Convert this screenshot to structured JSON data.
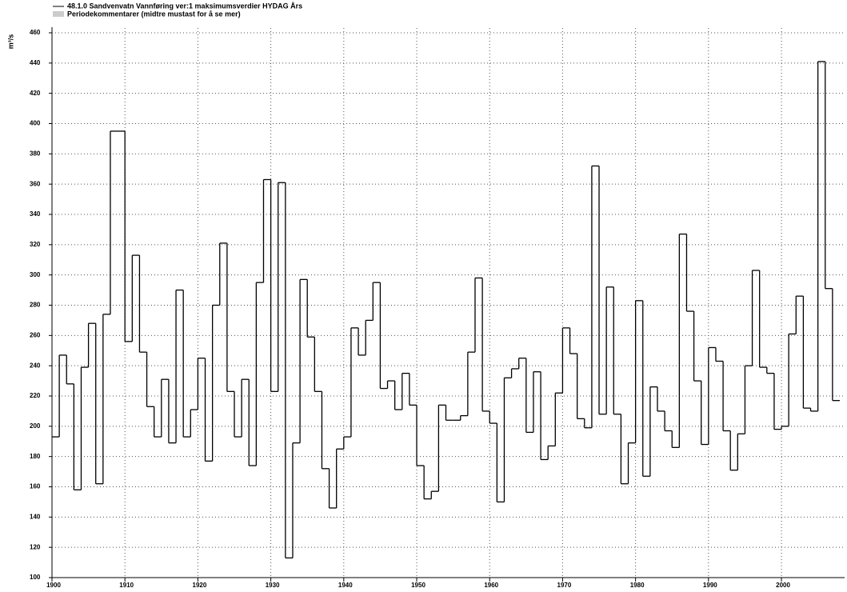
{
  "chart_data": {
    "type": "step",
    "legend": "48.1.0 Sandvenvatn Vannføring ver:1 maksimumsverdier HYDAG Års",
    "legend_note": "Periodekommentarer (midtre mustast for å se mer)",
    "ylabel": "m³/s",
    "x": [
      1900,
      1901,
      1902,
      1903,
      1904,
      1905,
      1906,
      1907,
      1908,
      1909,
      1910,
      1911,
      1912,
      1913,
      1914,
      1915,
      1916,
      1917,
      1918,
      1919,
      1920,
      1921,
      1922,
      1923,
      1924,
      1925,
      1926,
      1927,
      1928,
      1929,
      1930,
      1931,
      1932,
      1933,
      1934,
      1935,
      1936,
      1937,
      1938,
      1939,
      1940,
      1941,
      1942,
      1943,
      1944,
      1945,
      1946,
      1947,
      1948,
      1949,
      1950,
      1951,
      1952,
      1953,
      1954,
      1955,
      1956,
      1957,
      1958,
      1959,
      1960,
      1961,
      1962,
      1963,
      1964,
      1965,
      1966,
      1967,
      1968,
      1969,
      1970,
      1971,
      1972,
      1973,
      1974,
      1975,
      1976,
      1977,
      1978,
      1979,
      1980,
      1981,
      1982,
      1983,
      1984,
      1985,
      1986,
      1987,
      1988,
      1989,
      1990,
      1991,
      1992,
      1993,
      1994,
      1995,
      1996,
      1997,
      1998,
      1999,
      2000,
      2001,
      2002,
      2003,
      2004,
      2005,
      2006,
      2007
    ],
    "series": [
      {
        "name": "48.1.0 Sandvenvatn Vannføring ver:1 maksimumsverdier HYDAG Års",
        "color": "#000000",
        "values": [
          193,
          247,
          228,
          158,
          239,
          268,
          162,
          274,
          395,
          395,
          256,
          313,
          249,
          213,
          193,
          231,
          189,
          290,
          193,
          211,
          245,
          177,
          280,
          321,
          223,
          193,
          231,
          174,
          295,
          363,
          223,
          361,
          113,
          189,
          297,
          259,
          223,
          172,
          146,
          185,
          193,
          265,
          247,
          270,
          295,
          225,
          230,
          211,
          235,
          214,
          174,
          152,
          157,
          214,
          204,
          204,
          207,
          249,
          298,
          210,
          202,
          150,
          232,
          238,
          245,
          196,
          236,
          178,
          187,
          222,
          265,
          248,
          205,
          199,
          372,
          208,
          292,
          208,
          162,
          189,
          283,
          167,
          226,
          210,
          197,
          186,
          327,
          276,
          230,
          188,
          252,
          243,
          197,
          171,
          195,
          240,
          303,
          239,
          235,
          198,
          200,
          261,
          286,
          212,
          210,
          441,
          291,
          217
        ]
      }
    ],
    "xlim": [
      1900,
      2008
    ],
    "xticks": [
      1900,
      1910,
      1920,
      1930,
      1940,
      1950,
      1960,
      1970,
      1980,
      1990,
      2000
    ],
    "ylim": [
      100,
      460
    ],
    "yticks": [
      100,
      120,
      140,
      160,
      180,
      200,
      220,
      240,
      260,
      280,
      300,
      320,
      340,
      360,
      380,
      400,
      420,
      440,
      460
    ],
    "grid": true
  }
}
